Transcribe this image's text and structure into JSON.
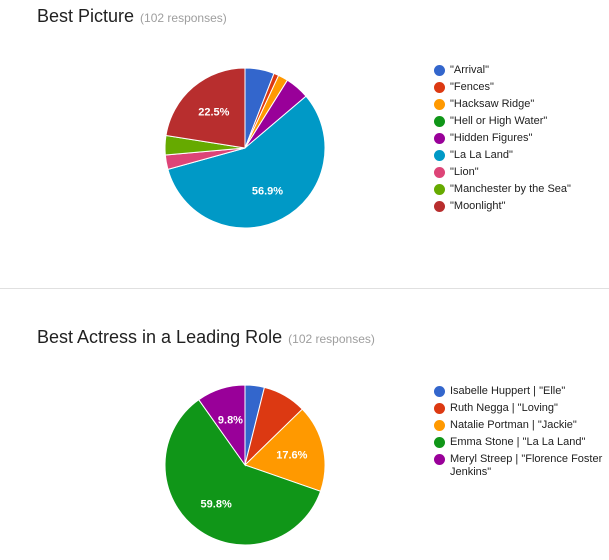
{
  "questions": [
    {
      "title": "Best Picture",
      "responses": "(102 responses)"
    },
    {
      "title": "Best Actress in a Leading Role",
      "responses": "(102 responses)"
    }
  ],
  "chart_data": [
    {
      "type": "pie",
      "title": "Best Picture",
      "categories": [
        "\"Arrival\"",
        "\"Fences\"",
        "\"Hacksaw Ridge\"",
        "\"Hell or High Water\"",
        "\"Hidden Figures\"",
        "\"La La Land\"",
        "\"Lion\"",
        "\"Manchester by the Sea\"",
        "\"Moonlight\""
      ],
      "values": [
        5.9,
        1.0,
        2.0,
        0.0,
        4.9,
        56.9,
        2.9,
        3.9,
        22.5
      ],
      "colors": [
        "#3366cc",
        "#dc3912",
        "#ff9900",
        "#109618",
        "#990099",
        "#0099c6",
        "#dd4477",
        "#66aa00",
        "#b82e2e"
      ],
      "data_labels": {
        "5": "56.9%",
        "8": "22.5%"
      },
      "legend": "right"
    },
    {
      "type": "pie",
      "title": "Best Actress in a Leading Role",
      "categories": [
        "Isabelle Huppert | \"Elle\"",
        "Ruth Negga | \"Loving\"",
        "Natalie Portman | \"Jackie\"",
        "Emma Stone | \"La La Land\"",
        "Meryl Streep | \"Florence Foster Jenkins\""
      ],
      "values": [
        3.9,
        8.8,
        17.6,
        59.8,
        9.8
      ],
      "colors": [
        "#3366cc",
        "#dc3912",
        "#ff9900",
        "#109618",
        "#990099"
      ],
      "data_labels": {
        "2": "17.6%",
        "3": "59.8%",
        "4": "9.8%"
      },
      "legend": "right"
    }
  ]
}
